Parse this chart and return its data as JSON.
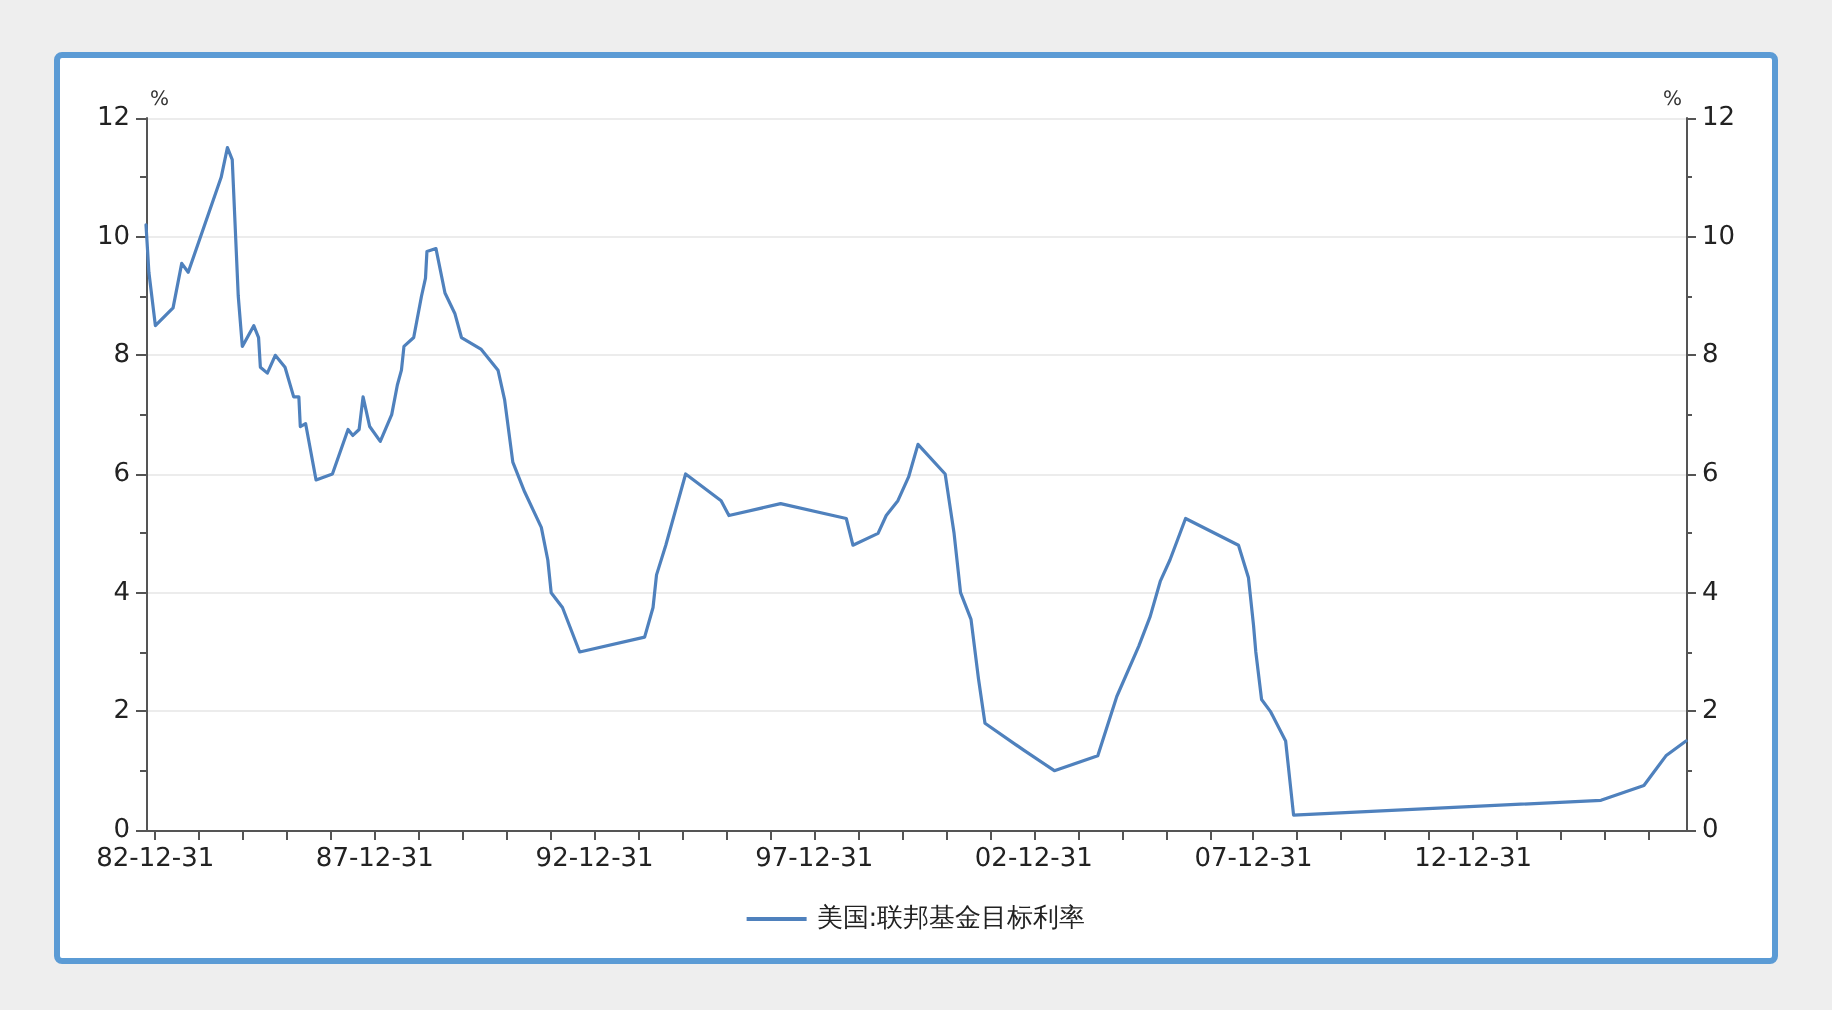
{
  "chart_data": {
    "type": "line",
    "ylabel": "%",
    "y2label": "%",
    "x": [
      "1982-10-15",
      "1982-11-08",
      "1983-01-01",
      "1983-05-28",
      "1983-08-08",
      "1983-10-01",
      "1984-07-01",
      "1984-08-22",
      "1984-10-01",
      "1984-11-20",
      "1984-12-24",
      "1985-03-29",
      "1985-05-08",
      "1985-05-23",
      "1985-07-20",
      "1985-09-24",
      "1985-12-14",
      "1986-02-24",
      "1986-04-08",
      "1986-04-20",
      "1986-06-03",
      "1986-08-29",
      "1987-01-12",
      "1987-05-22",
      "1987-07-01",
      "1987-08-22",
      "1987-09-24",
      "1987-11-18",
      "1988-02-14",
      "1988-05-19",
      "1988-07-05",
      "1988-08-08",
      "1988-08-29",
      "1988-11-18",
      "1989-01-22",
      "1989-02-24",
      "1989-03-08",
      "1989-05-22",
      "1989-08-05",
      "1989-10-27",
      "1989-12-20",
      "1990-06-03",
      "1990-10-20",
      "1990-12-14",
      "1991-02-20",
      "1991-05-29",
      "1991-10-15",
      "1991-12-08",
      "1992-01-05",
      "1992-04-08",
      "1992-08-29",
      "1994-02-20",
      "1994-05-01",
      "1994-05-30",
      "1994-08-15",
      "1995-01-27",
      "1995-11-18",
      "1996-01-22",
      "1997-03-27",
      "1998-09-24",
      "1998-11-18",
      "1999-06-15",
      "1999-08-22",
      "1999-11-27",
      "2000-02-24",
      "2000-05-12",
      "2000-12-24",
      "2001-03-08",
      "2001-05-01",
      "2001-07-27",
      "2001-09-27",
      "2001-11-20",
      "2002-10-05",
      "2003-06-20",
      "2004-06-15",
      "2004-11-20",
      "2005-05-22",
      "2005-08-25",
      "2005-11-18",
      "2006-02-05",
      "2006-06-15",
      "2007-08-29",
      "2007-11-20",
      "2008-01-01",
      "2008-01-20",
      "2008-03-08",
      "2008-05-20",
      "2008-09-24",
      "2008-11-29",
      "2015-11-29",
      "2016-11-20",
      "2017-05-22",
      "2017-11-05"
    ],
    "series": [
      {
        "name": "美国:联邦基金目标利率",
        "color": "#4f81bd",
        "values": [
          10.2,
          9.4,
          8.5,
          8.8,
          9.55,
          9.4,
          11.0,
          11.5,
          11.3,
          9.0,
          8.15,
          8.5,
          8.3,
          7.8,
          7.7,
          8.0,
          7.8,
          7.3,
          7.3,
          6.8,
          6.85,
          5.9,
          6.0,
          6.75,
          6.65,
          6.75,
          7.3,
          6.8,
          6.55,
          7.0,
          7.5,
          7.75,
          8.15,
          8.3,
          9.0,
          9.3,
          9.75,
          9.8,
          9.05,
          8.7,
          8.3,
          8.1,
          7.75,
          7.25,
          6.2,
          5.7,
          5.1,
          4.55,
          4.0,
          3.75,
          3.0,
          3.25,
          3.75,
          4.3,
          4.8,
          6.0,
          5.55,
          5.3,
          5.5,
          5.25,
          4.8,
          5.0,
          5.3,
          5.55,
          5.95,
          6.5,
          6.0,
          5.0,
          4.0,
          3.55,
          2.55,
          1.8,
          1.35,
          1.0,
          1.25,
          2.25,
          3.1,
          3.6,
          4.2,
          4.55,
          5.25,
          4.8,
          4.25,
          3.45,
          3.0,
          2.2,
          2.0,
          1.5,
          0.25,
          0.5,
          0.75,
          1.25,
          1.5
        ]
      }
    ],
    "xlim": [
      "1982-10-15",
      "2017-11-05"
    ],
    "xticks": [
      {
        "value": "1982-12-31",
        "label": "82-12-31"
      },
      {
        "value": "1983-12-31",
        "label": null
      },
      {
        "value": "1984-12-31",
        "label": null
      },
      {
        "value": "1985-12-31",
        "label": null
      },
      {
        "value": "1986-12-31",
        "label": null
      },
      {
        "value": "1987-12-31",
        "label": "87-12-31"
      },
      {
        "value": "1988-12-31",
        "label": null
      },
      {
        "value": "1989-12-31",
        "label": null
      },
      {
        "value": "1990-12-31",
        "label": null
      },
      {
        "value": "1991-12-31",
        "label": null
      },
      {
        "value": "1992-12-31",
        "label": "92-12-31"
      },
      {
        "value": "1993-12-31",
        "label": null
      },
      {
        "value": "1994-12-31",
        "label": null
      },
      {
        "value": "1995-12-31",
        "label": null
      },
      {
        "value": "1996-12-31",
        "label": null
      },
      {
        "value": "1997-12-31",
        "label": "97-12-31"
      },
      {
        "value": "1998-12-31",
        "label": null
      },
      {
        "value": "1999-12-31",
        "label": null
      },
      {
        "value": "2000-12-31",
        "label": null
      },
      {
        "value": "2001-12-31",
        "label": null
      },
      {
        "value": "2002-12-31",
        "label": "02-12-31"
      },
      {
        "value": "2003-12-31",
        "label": null
      },
      {
        "value": "2004-12-31",
        "label": null
      },
      {
        "value": "2005-12-31",
        "label": null
      },
      {
        "value": "2006-12-31",
        "label": null
      },
      {
        "value": "2007-12-31",
        "label": "07-12-31"
      },
      {
        "value": "2008-12-31",
        "label": null
      },
      {
        "value": "2009-12-31",
        "label": null
      },
      {
        "value": "2010-12-31",
        "label": null
      },
      {
        "value": "2011-12-31",
        "label": null
      },
      {
        "value": "2012-12-31",
        "label": "12-12-31"
      },
      {
        "value": "2013-12-31",
        "label": null
      },
      {
        "value": "2014-12-31",
        "label": null
      },
      {
        "value": "2015-12-31",
        "label": null
      },
      {
        "value": "2016-12-31",
        "label": null
      }
    ],
    "ylim": [
      0,
      12
    ],
    "yticks": [
      0,
      {
        "value": 1,
        "label": null
      },
      2,
      {
        "value": 3,
        "label": null
      },
      4,
      {
        "value": 5,
        "label": null
      },
      6,
      {
        "value": 7,
        "label": null
      },
      8,
      {
        "value": 9,
        "label": null
      },
      10,
      {
        "value": 11,
        "label": null
      },
      12
    ],
    "y2lim": [
      0,
      12
    ],
    "y2ticks": [
      0,
      {
        "value": 1,
        "label": null
      },
      2,
      {
        "value": 3,
        "label": null
      },
      4,
      {
        "value": 5,
        "label": null
      },
      6,
      {
        "value": 7,
        "label": null
      },
      8,
      {
        "value": 9,
        "label": null
      },
      10,
      {
        "value": 11,
        "label": null
      },
      12
    ],
    "grid": "y",
    "legend": "bottom",
    "marker": "none",
    "line_style": "solid"
  }
}
